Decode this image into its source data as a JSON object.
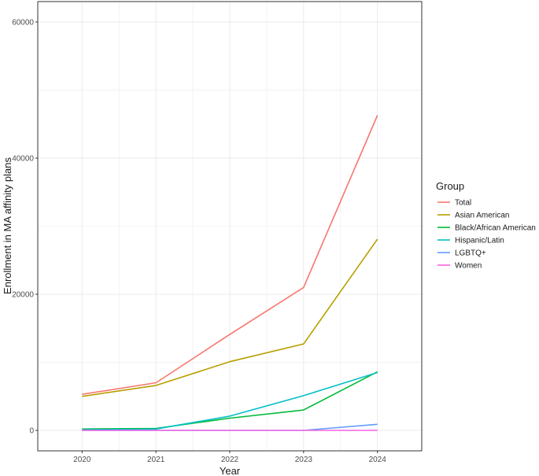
{
  "chart_data": {
    "type": "line",
    "xlabel": "Year",
    "ylabel": "Enrollment in MA affinity plans",
    "x": [
      2020,
      2021,
      2022,
      2023,
      2024
    ],
    "x_tick_labels": [
      "2020",
      "2021",
      "2022",
      "2023",
      "2024"
    ],
    "xlim": [
      2019.4,
      2024.6
    ],
    "ylim": [
      -3000,
      63000
    ],
    "y_ticks": [
      0,
      20000,
      40000,
      60000
    ],
    "y_tick_labels": [
      "0",
      "20000",
      "40000",
      "60000"
    ],
    "y_minor_ticks": [
      10000,
      30000,
      50000
    ],
    "grid": true,
    "legend": {
      "title": "Group",
      "placement": "right"
    },
    "series": [
      {
        "name": "Total",
        "color": "#F8766D",
        "values": [
          5300,
          7000,
          14100,
          21000,
          46300
        ]
      },
      {
        "name": "Asian American",
        "color": "#B79F00",
        "values": [
          5000,
          6600,
          10100,
          12700,
          28100
        ]
      },
      {
        "name": "Black/African American",
        "color": "#00BA38",
        "values": [
          200,
          300,
          1800,
          3000,
          8600
        ]
      },
      {
        "name": "Hispanic/Latin",
        "color": "#00BFC4",
        "values": [
          100,
          200,
          2100,
          5100,
          8500
        ]
      },
      {
        "name": "LGBTQ+",
        "color": "#619CFF",
        "values": [
          0,
          0,
          0,
          0,
          900
        ]
      },
      {
        "name": "Women",
        "color": "#F564E3",
        "values": [
          0,
          0,
          0,
          0,
          0
        ]
      }
    ]
  }
}
